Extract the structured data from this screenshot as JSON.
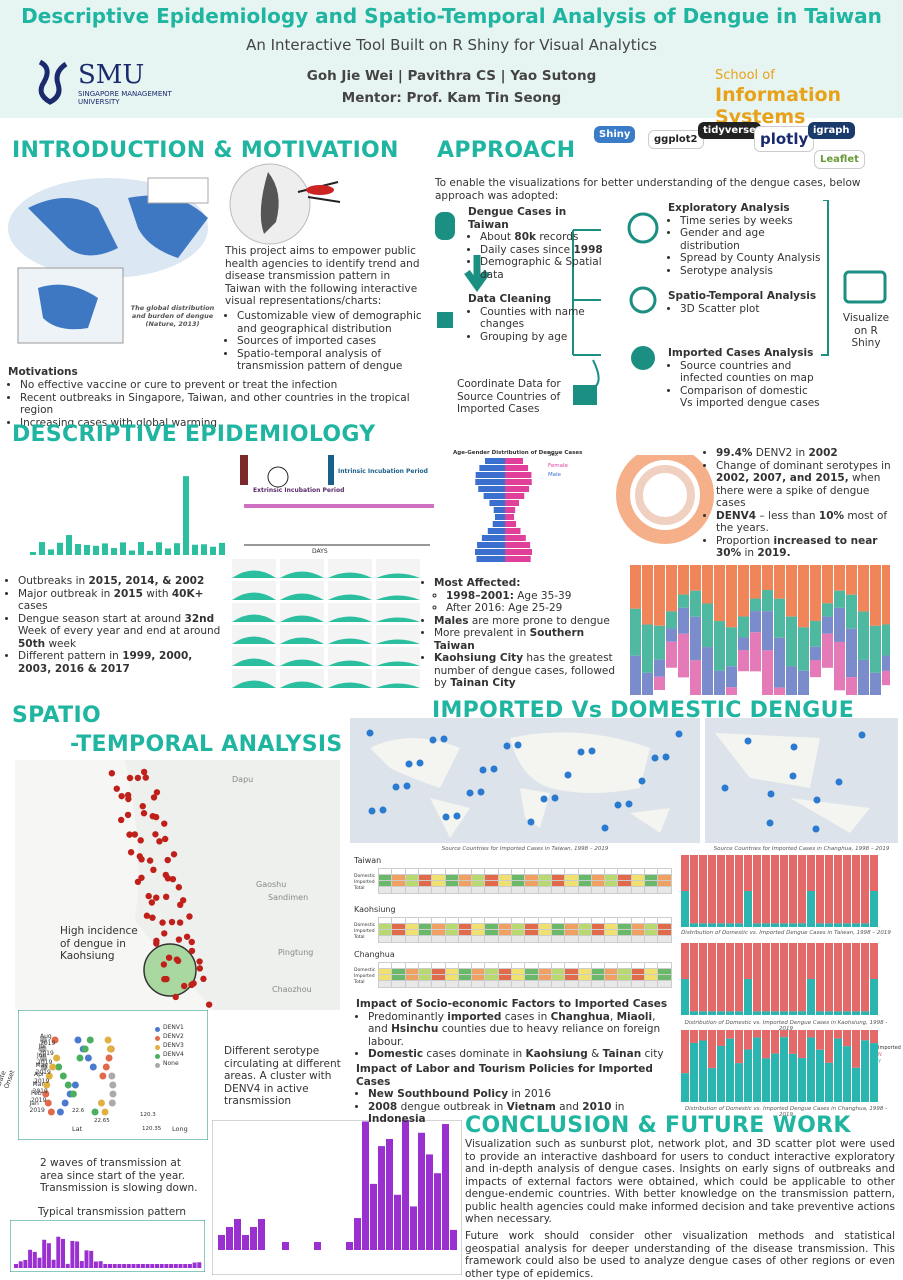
{
  "header": {
    "title": "Descriptive Epidemiology and Spatio-Temporal Analysis of Dengue in Taiwan",
    "subtitle": "An Interactive Tool Built on R Shiny for Visual Analytics",
    "authors": "Goh Jie Wei | Pavithra CS | Yao Sutong",
    "mentor": "Mentor: Prof. Kam Tin Seong",
    "logo_left": {
      "name": "SMU",
      "full": "SINGAPORE MANAGEMENT UNIVERSITY"
    },
    "logo_right": {
      "line1": "School of",
      "line2": "Information Systems"
    }
  },
  "intro": {
    "heading": "INTRODUCTION & MOTIVATION",
    "map_caption": "The global distribution and burden of dengue (Nature, 2013)",
    "text": "This project aims to empower public health agencies to identify trend and disease transmission pattern in Taiwan with the following interactive visual representations/charts:",
    "bullets": [
      "Customizable view of demographic and geographical distribution",
      "Sources of imported cases",
      "Spatio-temporal analysis of transmission pattern of dengue"
    ],
    "motivations_heading": "Motivations",
    "motivations": [
      "No effective vaccine or cure to prevent or treat the infection",
      "Recent outbreaks in Singapore, Taiwan, and other countries in the tropical region",
      "Increasing cases with global warming"
    ]
  },
  "approach": {
    "heading": "APPROACH",
    "logos": [
      "Shiny",
      "ggplot2",
      "tidyverse",
      "plotly",
      "Leaflet",
      "igraph"
    ],
    "intro": "To enable the visualizations for better understanding of the dengue cases, below approach was adopted:",
    "cases": {
      "title": "Dengue Cases in Taiwan",
      "items": [
        [
          "About ",
          "80k",
          " records"
        ],
        [
          "Daily cases since ",
          "1998"
        ],
        "Demographic & Spatial data"
      ]
    },
    "cleaning": {
      "title": "Data Cleaning",
      "items": [
        "Counties with name changes",
        "Grouping by age"
      ]
    },
    "coordinate": "Coordinate Data for Source Countries of Imported Cases",
    "exploratory": {
      "title": "Exploratory Analysis",
      "items": [
        "Time series by weeks",
        "Gender and age distribution",
        "Spread by County Analysis",
        "Serotype analysis"
      ]
    },
    "spatio": {
      "title": "Spatio-Temporal Analysis",
      "items": [
        "3D Scatter plot"
      ]
    },
    "imported": {
      "title": "Imported Cases Analysis",
      "items": [
        "Source countries and infected counties on map",
        "Comparison of domestic Vs imported dengue cases"
      ]
    },
    "visualize": "Visualize on R Shiny"
  },
  "descriptive": {
    "heading": "DESCRIPTIVE EPIDEMIOLOGY",
    "incubation": {
      "extrinsic": "Extrinsic Incubation Period",
      "intrinsic": "Intrinsic Incubation Period",
      "axis": "DAYS"
    },
    "pyramid": {
      "title": "Age-Gender Distribution of Dengue Cases",
      "legend_title": "Sex",
      "legend": [
        "Female",
        "Male"
      ]
    },
    "left": [
      [
        "Outbreaks in ",
        "2015, 2014, & 2002"
      ],
      [
        "Major outbreak in ",
        "2015",
        " with ",
        "40K+",
        " cases"
      ],
      [
        "Dengue season start at around ",
        "32nd",
        " Week of every year and end at around ",
        "50th",
        " week"
      ],
      [
        "Different pattern in ",
        "1999, 2000, 2003, 2016 & 2017"
      ]
    ],
    "middle": {
      "title": "Most Affected:",
      "sub": [
        [
          "",
          "1998–2001:",
          " Age 35-39"
        ],
        "After 2016: Age 25-29"
      ],
      "items": [
        [
          "",
          "Males",
          " are more prone to dengue"
        ],
        [
          "More prevalent in ",
          "Southern Taiwan"
        ],
        [
          "",
          "Kaohsiung City",
          " has the greatest number of dengue cases, followed by ",
          "Tainan City"
        ]
      ]
    },
    "right": [
      [
        "",
        "99.4%",
        " DENV2 in ",
        "2002"
      ],
      [
        "Change of dominant serotypes in ",
        "2002, 2007, and 2015,",
        " when there were a spike of dengue cases"
      ],
      [
        "",
        "DENV4",
        " – less than ",
        "10%",
        " most of the years."
      ],
      [
        "Proportion ",
        "increased to near 30%",
        " in ",
        "2019."
      ]
    ]
  },
  "spatio": {
    "heading1": "SPATIO",
    "heading2": "-TEMPORAL ANALYSIS",
    "map_labels": [
      "Dapu",
      "Gaoshu",
      "Sandimen",
      "Pingtung",
      "Chaozhou"
    ],
    "annotation": "High incidence of dengue in Kaohsiung",
    "plot": {
      "axis_z": "Date Onset",
      "dates": [
        "Aug 2019",
        "Jul 2019",
        "Jun 2019",
        "May 2019",
        "Apr 2019",
        "Mar 2019",
        "Feb 2019",
        "Jan 2019"
      ],
      "lat": "Lat",
      "long": "Long",
      "lat_ticks": [
        "22.6",
        "22.65"
      ],
      "long_ticks": [
        "120.3",
        "120.35"
      ],
      "legend": [
        "DENV1",
        "DENV2",
        "DENV3",
        "DENV4",
        "None"
      ]
    },
    "serotype_note": "Different serotype circulating at different areas. A cluster with DENV4 in active transmission",
    "waves_note": "2 waves of transmission at area since start of the year. Transmission is slowing down.",
    "typical": "Typical transmission pattern"
  },
  "imported": {
    "heading": "IMPORTED Vs DOMESTIC DENGUE",
    "map_captions": [
      "Source Countries for Imported Cases in Taiwan, 1998 – 2019",
      "Source Countries for Imported Cases in Changhua, 1998 – 2019"
    ],
    "tables": [
      "Taiwan",
      "Kaohsiung",
      "Changhua"
    ],
    "row_labels": [
      "Domestic",
      "Imported",
      "Total"
    ],
    "bar_captions": [
      "Distribution of Domestic vs. Imported Dengue Cases in Taiwan, 1998 – 2019",
      "Distribution of Domestic vs. Imported Dengue Cases in Kaohsiung, 1998 - 2019",
      "Distribution of Domestic vs. Imported Dengue Cases in Changhua, 1998 - 2019"
    ],
    "bar_legend": {
      "title": "Imported",
      "items": [
        "N",
        "Y"
      ]
    },
    "impact1": {
      "title": "Impact of Socio-economic Factors to Imported Cases",
      "items": [
        [
          "Predominantly ",
          "imported",
          " cases in ",
          "Changhua",
          ", ",
          "Miaoli",
          ", and ",
          "Hsinchu",
          " counties due to heavy reliance on foreign labour."
        ],
        [
          "",
          "Domestic",
          " cases dominate in ",
          "Kaohsiung",
          " & ",
          "Tainan",
          " city"
        ]
      ]
    },
    "impact2": {
      "title": "Impact of Labor and Tourism Policies for Imported Cases",
      "items": [
        [
          "",
          "New Southbound Policy",
          " in 2016"
        ],
        [
          "",
          "2008",
          " dengue outbreak in ",
          "Vietnam",
          " and ",
          "2010",
          " in ",
          "Indonesia"
        ]
      ]
    }
  },
  "conclusion": {
    "heading": "CONCLUSION & FUTURE WORK",
    "p1": "Visualization such as sunburst plot, network plot, and 3D scatter plot were used to provide an interactive dashboard for users to conduct interactive exploratory and in-depth analysis of dengue cases.  Insights on early signs of outbreaks and impacts of external factors were obtained, which could be applicable to other dengue-endemic countries. With better knowledge on the transmission pattern, public health agencies could make informed decision and take preventive actions when necessary.",
    "p2": "Future work should consider other visualization methods and statistical geospatial analysis for deeper understanding of the disease transmission. This framework could also be used to analyze dengue cases of other regions or even other type of epidemics."
  }
}
